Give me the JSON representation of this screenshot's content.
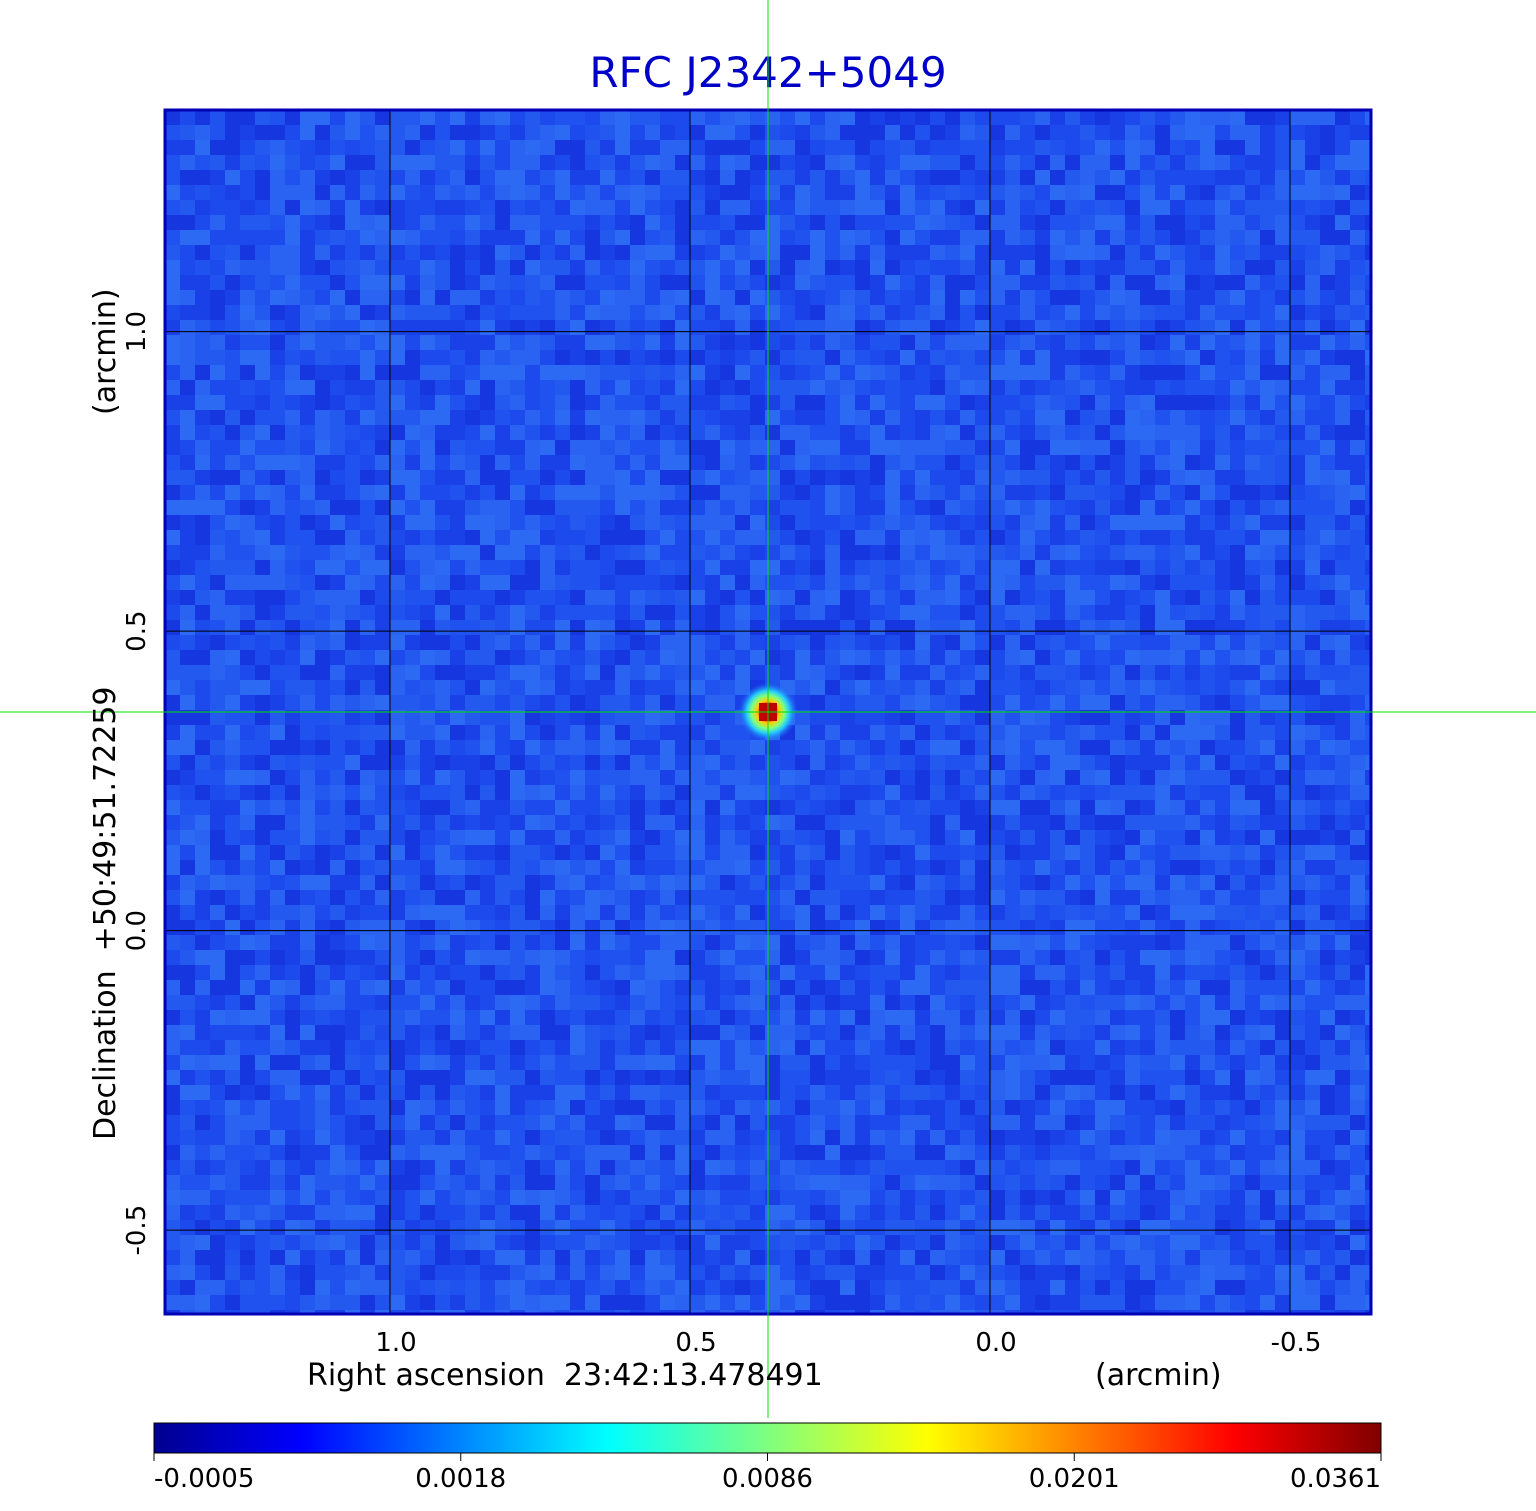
{
  "chart_data": {
    "type": "heatmap",
    "title": "RFC J2342+5049",
    "xlabel": "Right ascension  23:42:13.478491",
    "xunit": "(arcmin)",
    "ylabel": "Declination  +50:49:51.72259",
    "yunit": "(arcmin)",
    "xlim": [
      1.375,
      -0.635
    ],
    "ylim": [
      -0.64,
      1.37
    ],
    "x_ticks": [
      1.0,
      0.5,
      0.0,
      -0.5
    ],
    "x_tick_labels": [
      "1.0",
      "0.5",
      "0.0",
      "-0.5"
    ],
    "y_ticks": [
      1.0,
      0.5,
      0.0,
      -0.5
    ],
    "y_tick_labels": [
      "1.0",
      "0.5",
      "0.0",
      "-0.5"
    ],
    "grid": true,
    "crosshair": {
      "x": 0.37,
      "y": 0.365
    },
    "source": {
      "x": 0.37,
      "y": 0.365,
      "peak": 0.0361
    },
    "colorbar": {
      "min": -0.0005,
      "max": 0.0361,
      "tick_values": [
        -0.0005,
        0.0018,
        0.0086,
        0.0201,
        0.0361
      ],
      "tick_labels": [
        "-0.0005",
        "0.0018",
        "0.0086",
        "0.0201",
        "0.0361"
      ],
      "colormap": "jet"
    },
    "colors": {
      "frame": "#0000b4",
      "title": "#0000c8",
      "grid": "#000000",
      "crosshair": "#00e000",
      "background": "#1f52ee"
    }
  }
}
